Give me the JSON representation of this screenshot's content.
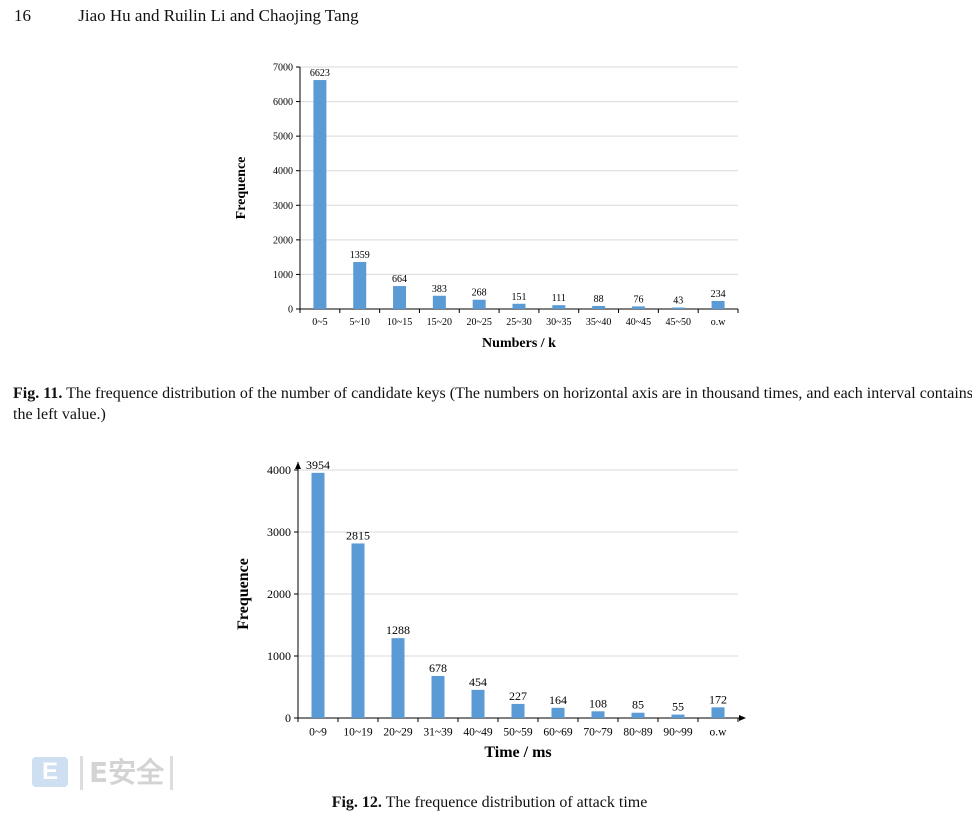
{
  "running_head": {
    "page_number": "16",
    "authors": "Jiao Hu and Ruilin Li and Chaojing Tang"
  },
  "figures": [
    {
      "caption_label": "Fig. 11.",
      "caption_text": "The frequence distribution of the number of candidate keys (The numbers on horizontal axis are in thousand times, and each interval contains the left value.)"
    },
    {
      "caption_label": "Fig. 12.",
      "caption_text": "The frequence distribution of attack time"
    }
  ],
  "watermark": {
    "badge": "E",
    "text": "E安全"
  },
  "chart_data": [
    {
      "type": "bar",
      "title": "",
      "xlabel": "Numbers / k",
      "ylabel": "Frequence",
      "categories": [
        "0~5",
        "5~10",
        "10~15",
        "15~20",
        "20~25",
        "25~30",
        "30~35",
        "35~40",
        "40~45",
        "45~50",
        "o.w"
      ],
      "values": [
        6623,
        1359,
        664,
        383,
        268,
        151,
        111,
        88,
        76,
        43,
        234
      ],
      "ylim": [
        0,
        7000
      ],
      "yticks": [
        0,
        1000,
        2000,
        3000,
        4000,
        5000,
        6000,
        7000
      ],
      "grid": true,
      "legend": "none",
      "bar_color": "#5b9bd5"
    },
    {
      "type": "bar",
      "title": "",
      "xlabel": "Time / ms",
      "ylabel": "Frequence",
      "categories": [
        "0~9",
        "10~19",
        "20~29",
        "31~39",
        "40~49",
        "50~59",
        "60~69",
        "70~79",
        "80~89",
        "90~99",
        "o.w"
      ],
      "values": [
        3954,
        2815,
        1288,
        678,
        454,
        227,
        164,
        108,
        85,
        55,
        172
      ],
      "ylim": [
        0,
        4000
      ],
      "yticks": [
        0,
        1000,
        2000,
        3000,
        4000
      ],
      "grid": true,
      "legend": "none",
      "bar_color": "#5b9bd5"
    }
  ]
}
